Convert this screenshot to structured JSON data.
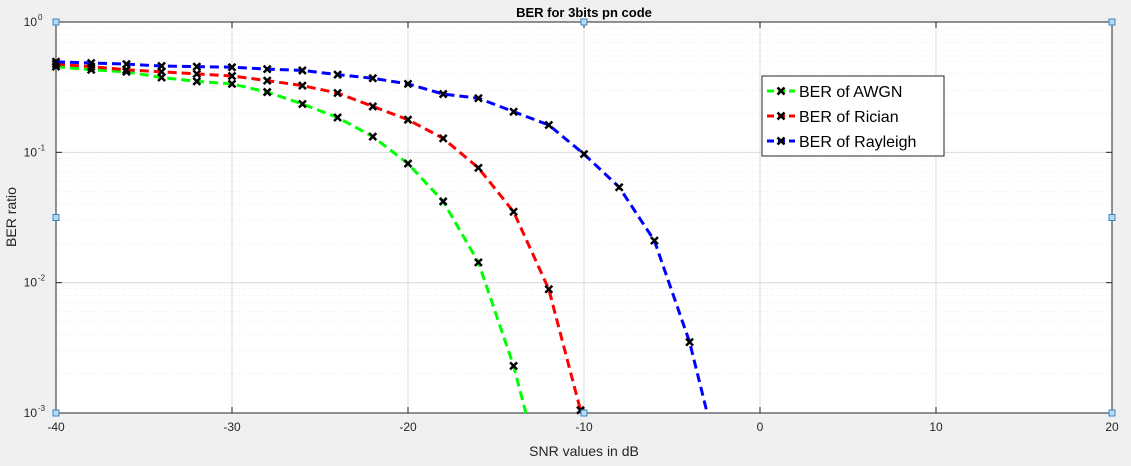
{
  "chart_data": {
    "type": "line",
    "title": "BER for 3bits pn code",
    "xlabel": "SNR values in dB",
    "ylabel": "BER ratio",
    "xlim": [
      -40,
      20
    ],
    "ylim": [
      0.001,
      1
    ],
    "yscale": "log",
    "grid": true,
    "minor_grid": true,
    "legend_position": "top-right",
    "x_ticks": [
      "-40",
      "-30",
      "-20",
      "-10",
      "0",
      "10",
      "20"
    ],
    "y_ticks": [
      {
        "base": "10",
        "exp": "0"
      },
      {
        "base": "10",
        "exp": "-1"
      },
      {
        "base": "10",
        "exp": "-2"
      },
      {
        "base": "10",
        "exp": "-3"
      }
    ],
    "series": [
      {
        "name": "BER of AWGN",
        "color": "#00ff00",
        "marker": "x",
        "line": "dashed",
        "points": [
          [
            -40,
            0.455
          ],
          [
            -38,
            0.43
          ],
          [
            -36,
            0.415
          ],
          [
            -34,
            0.375
          ],
          [
            -32,
            0.35
          ],
          [
            -30,
            0.335
          ],
          [
            -28,
            0.29
          ],
          [
            -26,
            0.235
          ],
          [
            -24,
            0.185
          ],
          [
            -22,
            0.132
          ],
          [
            -20,
            0.082
          ],
          [
            -18,
            0.042
          ],
          [
            -16,
            0.0143
          ],
          [
            -14,
            0.0023
          ],
          [
            -13.3,
            0.001
          ]
        ]
      },
      {
        "name": "BER of Rician",
        "color": "#ff0000",
        "marker": "x",
        "line": "dashed",
        "points": [
          [
            -40,
            0.475
          ],
          [
            -38,
            0.455
          ],
          [
            -36,
            0.43
          ],
          [
            -34,
            0.415
          ],
          [
            -32,
            0.4
          ],
          [
            -30,
            0.385
          ],
          [
            -28,
            0.355
          ],
          [
            -26,
            0.325
          ],
          [
            -24,
            0.285
          ],
          [
            -22,
            0.225
          ],
          [
            -20,
            0.178
          ],
          [
            -18,
            0.128
          ],
          [
            -16,
            0.076
          ],
          [
            -14,
            0.035
          ],
          [
            -12,
            0.0089
          ],
          [
            -10.2,
            0.00105
          ]
        ]
      },
      {
        "name": "BER of Rayleigh",
        "color": "#0000ff",
        "marker": "x",
        "line": "dashed",
        "points": [
          [
            -40,
            0.495
          ],
          [
            -38,
            0.485
          ],
          [
            -36,
            0.475
          ],
          [
            -34,
            0.46
          ],
          [
            -32,
            0.455
          ],
          [
            -30,
            0.45
          ],
          [
            -28,
            0.435
          ],
          [
            -26,
            0.425
          ],
          [
            -24,
            0.395
          ],
          [
            -22,
            0.37
          ],
          [
            -20,
            0.335
          ],
          [
            -18,
            0.28
          ],
          [
            -16,
            0.26
          ],
          [
            -14,
            0.205
          ],
          [
            -12,
            0.162
          ],
          [
            -10,
            0.097
          ],
          [
            -8,
            0.054
          ],
          [
            -6,
            0.021
          ],
          [
            -4,
            0.0035
          ]
        ],
        "tail_to": [
          -3,
          0.001
        ]
      }
    ]
  }
}
